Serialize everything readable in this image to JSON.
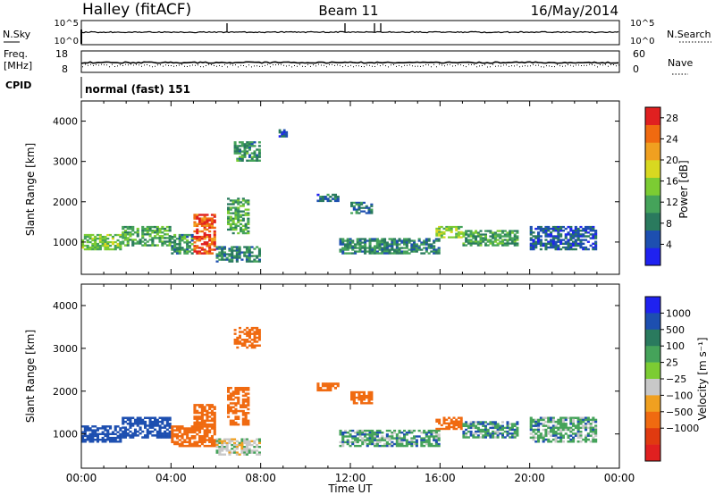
{
  "header": {
    "station": "Halley (fitACF)",
    "beam": "Beam 11",
    "date": "16/May/2014"
  },
  "summary": {
    "nsky_label": "N.Sky",
    "nsky_ticks": [
      "10^5",
      "10^0"
    ],
    "nsearch_label": "N.Search",
    "nsearch_ticks": [
      "10^5",
      "10^0"
    ],
    "freq_label": "Freq.",
    "freq_unit": "[MHz]",
    "freq_ticks": [
      "18",
      "8"
    ],
    "nave_label": "Nave",
    "nave_ticks": [
      "60",
      "0"
    ],
    "cpid_label": "CPID",
    "cpid_value": "normal (fast) 151"
  },
  "colors": {
    "power_scale": [
      "#1f22f0",
      "#1d4fb0",
      "#2a7a5e",
      "#45a35a",
      "#7ccc33",
      "#d8d820",
      "#f0a020",
      "#f06a10",
      "#e02020"
    ],
    "velocity_scale": [
      "#1f22f0",
      "#1d4fb0",
      "#2a7a5e",
      "#45a35a",
      "#7ccc33",
      "#c8c8c8",
      "#f0a020",
      "#f06a10",
      "#e03a10",
      "#e02020"
    ]
  },
  "chart_data": [
    {
      "type": "heatmap",
      "name": "power",
      "xlabel": "Time UT",
      "ylabel": "Slant Range [km]",
      "x_ticks": [
        "00:00",
        "04:00",
        "08:00",
        "12:00",
        "16:00",
        "20:00",
        "00:00"
      ],
      "xlim": [
        0,
        24
      ],
      "ylim": [
        200,
        4500
      ],
      "y_ticks": [
        1000,
        2000,
        3000,
        4000
      ],
      "colorbar_label": "Power [dB]",
      "colorbar_ticks": [
        "4",
        "8",
        "12",
        "16",
        "20",
        "24",
        "28"
      ],
      "colorbar_range": [
        0,
        30
      ],
      "regions": [
        {
          "t": [
            0.0,
            1.8
          ],
          "r": [
            800,
            1200
          ],
          "v": 14
        },
        {
          "t": [
            1.8,
            4.0
          ],
          "r": [
            900,
            1400
          ],
          "v": 12
        },
        {
          "t": [
            4.0,
            5.0
          ],
          "r": [
            700,
            1200
          ],
          "v": 10
        },
        {
          "t": [
            5.0,
            6.0
          ],
          "r": [
            700,
            1700
          ],
          "v": 26
        },
        {
          "t": [
            6.0,
            8.0
          ],
          "r": [
            500,
            900
          ],
          "v": 9
        },
        {
          "t": [
            6.5,
            7.5
          ],
          "r": [
            1200,
            2100
          ],
          "v": 12
        },
        {
          "t": [
            6.8,
            8.0
          ],
          "r": [
            3000,
            3500
          ],
          "v": 10
        },
        {
          "t": [
            8.8,
            9.2
          ],
          "r": [
            3600,
            3800
          ],
          "v": 6
        },
        {
          "t": [
            10.5,
            11.5
          ],
          "r": [
            2000,
            2200
          ],
          "v": 7
        },
        {
          "t": [
            12.0,
            13.0
          ],
          "r": [
            1700,
            2000
          ],
          "v": 8
        },
        {
          "t": [
            11.5,
            16.0
          ],
          "r": [
            700,
            1100
          ],
          "v": 9
        },
        {
          "t": [
            15.8,
            17.0
          ],
          "r": [
            1100,
            1400
          ],
          "v": 15
        },
        {
          "t": [
            17.0,
            19.5
          ],
          "r": [
            900,
            1300
          ],
          "v": 11
        },
        {
          "t": [
            20.0,
            23.0
          ],
          "r": [
            800,
            1400
          ],
          "v": 6
        }
      ]
    },
    {
      "type": "heatmap",
      "name": "velocity",
      "xlabel": "Time UT",
      "ylabel": "Slant Range [km]",
      "x_ticks": [
        "00:00",
        "04:00",
        "08:00",
        "12:00",
        "16:00",
        "20:00",
        "00:00"
      ],
      "xlim": [
        0,
        24
      ],
      "ylim": [
        200,
        4500
      ],
      "y_ticks": [
        1000,
        2000,
        3000,
        4000
      ],
      "colorbar_label": "Velocity [m s⁻¹]",
      "colorbar_ticks": [
        "1000",
        "500",
        "100",
        "25",
        "-25",
        "-100",
        "-500",
        "-1000"
      ],
      "regions": [
        {
          "t": [
            0.0,
            1.8
          ],
          "r": [
            800,
            1200
          ],
          "v": 300
        },
        {
          "t": [
            1.8,
            4.0
          ],
          "r": [
            900,
            1400
          ],
          "v": 200
        },
        {
          "t": [
            4.0,
            5.0
          ],
          "r": [
            700,
            1200
          ],
          "v": -150
        },
        {
          "t": [
            5.0,
            6.0
          ],
          "r": [
            700,
            1700
          ],
          "v": -300
        },
        {
          "t": [
            6.0,
            8.0
          ],
          "r": [
            500,
            900
          ],
          "v": 0
        },
        {
          "t": [
            6.5,
            7.5
          ],
          "r": [
            1200,
            2100
          ],
          "v": -150
        },
        {
          "t": [
            6.8,
            8.0
          ],
          "r": [
            3000,
            3500
          ],
          "v": -200
        },
        {
          "t": [
            10.5,
            11.5
          ],
          "r": [
            2000,
            2200
          ],
          "v": -200
        },
        {
          "t": [
            12.0,
            13.0
          ],
          "r": [
            1700,
            2000
          ],
          "v": -150
        },
        {
          "t": [
            11.5,
            16.0
          ],
          "r": [
            700,
            1100
          ],
          "v": 60
        },
        {
          "t": [
            15.8,
            17.0
          ],
          "r": [
            1100,
            1400
          ],
          "v": -120
        },
        {
          "t": [
            17.0,
            19.5
          ],
          "r": [
            900,
            1300
          ],
          "v": 80
        },
        {
          "t": [
            20.0,
            23.0
          ],
          "r": [
            800,
            1400
          ],
          "v": 60
        }
      ]
    }
  ]
}
